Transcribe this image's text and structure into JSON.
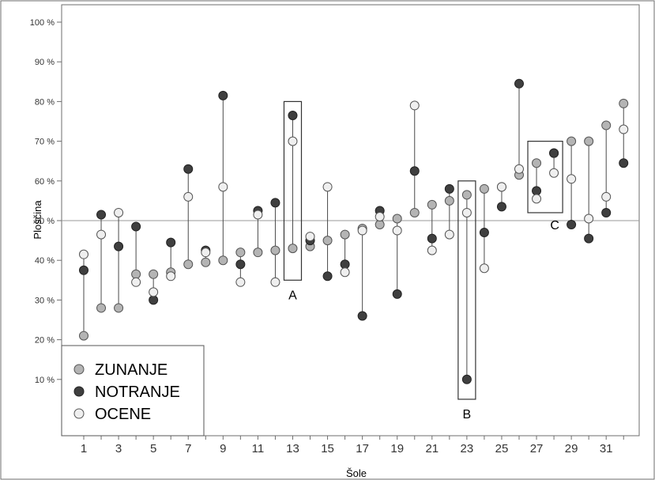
{
  "chart_data": {
    "type": "scatter",
    "xlabel": "Šole",
    "ylabel": "Ploščina",
    "xlim": [
      0,
      32.5
    ],
    "ylim": [
      0,
      100
    ],
    "x_ticks": [
      1,
      3,
      5,
      7,
      9,
      11,
      13,
      15,
      17,
      19,
      21,
      23,
      25,
      27,
      29,
      31
    ],
    "y_ticks": [
      10,
      20,
      30,
      40,
      50,
      60,
      70,
      80,
      90,
      100
    ],
    "y_tick_labels": [
      "10 %",
      "20 %",
      "30 %",
      "40 %",
      "50 %",
      "60 %",
      "70 %",
      "80 %",
      "90 %",
      "100 %"
    ],
    "reference_line": 50,
    "grid": false,
    "legend_position": "bottom-left",
    "series": [
      {
        "name": "ZUNANJE",
        "color": "#b4b4b4",
        "stroke": "#555555",
        "values": [
          21,
          28,
          28,
          36.5,
          36.5,
          37,
          39,
          39.5,
          40,
          42,
          42,
          42.5,
          43,
          43.5,
          45,
          46.5,
          48,
          49,
          50.5,
          52,
          54,
          55,
          56.5,
          58,
          58.5,
          61.5,
          64.5,
          67,
          70,
          70,
          74,
          79.5
        ]
      },
      {
        "name": "NOTRANJE",
        "color": "#3f3f3f",
        "stroke": "#222222",
        "values": [
          37.5,
          51.5,
          43.5,
          48.5,
          30,
          44.5,
          63,
          42.5,
          81.5,
          39,
          52.5,
          54.5,
          76.5,
          45,
          36,
          39,
          26,
          52.5,
          31.5,
          62.5,
          45.5,
          58,
          10,
          47,
          53.5,
          84.5,
          57.5,
          67,
          49,
          45.5,
          52,
          64.5
        ]
      },
      {
        "name": "OCENE",
        "color": "#efefef",
        "stroke": "#555555",
        "values": [
          41.5,
          46.5,
          52,
          34.5,
          32,
          36,
          56,
          42,
          58.5,
          34.5,
          51.5,
          34.5,
          70,
          46,
          58.5,
          37,
          47.5,
          51,
          47.5,
          79,
          42.5,
          46.5,
          52,
          38,
          58.5,
          63,
          55.5,
          62,
          60.5,
          50.5,
          56,
          73
        ]
      }
    ],
    "annotations": [
      {
        "label": "A",
        "x_range": [
          12.5,
          13.5
        ],
        "y_range": [
          35,
          80
        ]
      },
      {
        "label": "B",
        "x_range": [
          22.5,
          23.5
        ],
        "y_range": [
          5,
          60
        ]
      },
      {
        "label": "C",
        "x_range": [
          26.5,
          28.5
        ],
        "y_range": [
          52,
          70
        ]
      }
    ]
  }
}
